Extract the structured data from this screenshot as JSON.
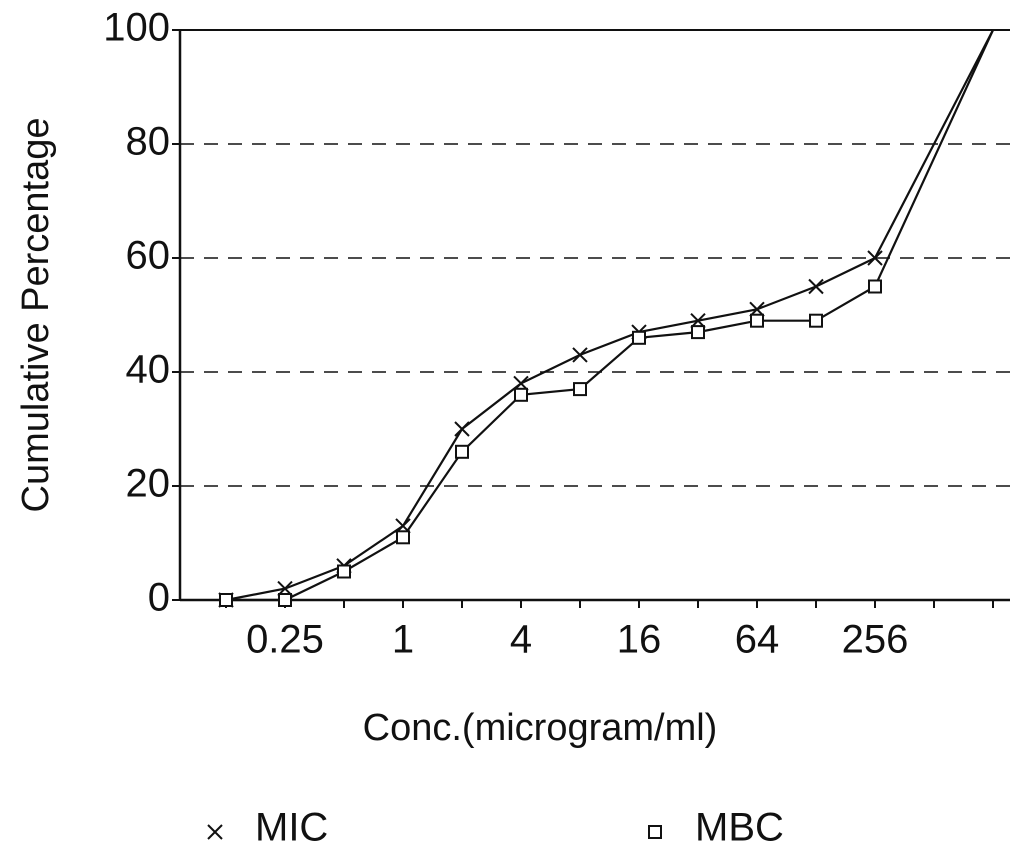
{
  "chart_data": {
    "type": "line",
    "x_label": "Conc.(microgram/ml)",
    "y_label": "Cumulative Percentage",
    "categories": [
      null,
      "0.25",
      null,
      "1",
      null,
      "4",
      null,
      "16",
      null,
      "64",
      null,
      "256",
      null,
      null
    ],
    "series": [
      {
        "name": "MIC",
        "marker": "x",
        "color": "#111111",
        "values": [
          0,
          2,
          6,
          13,
          30,
          38,
          43,
          47,
          49,
          51,
          55,
          60,
          null,
          100
        ]
      },
      {
        "name": "MBC",
        "marker": "square",
        "color": "#111111",
        "values": [
          0,
          0,
          5,
          11,
          26,
          36,
          37,
          46,
          47,
          49,
          49,
          55,
          null,
          100
        ]
      }
    ],
    "ylim": [
      0,
      100
    ],
    "yticks": [
      0,
      20,
      40,
      60,
      80,
      100
    ],
    "grid": true
  }
}
